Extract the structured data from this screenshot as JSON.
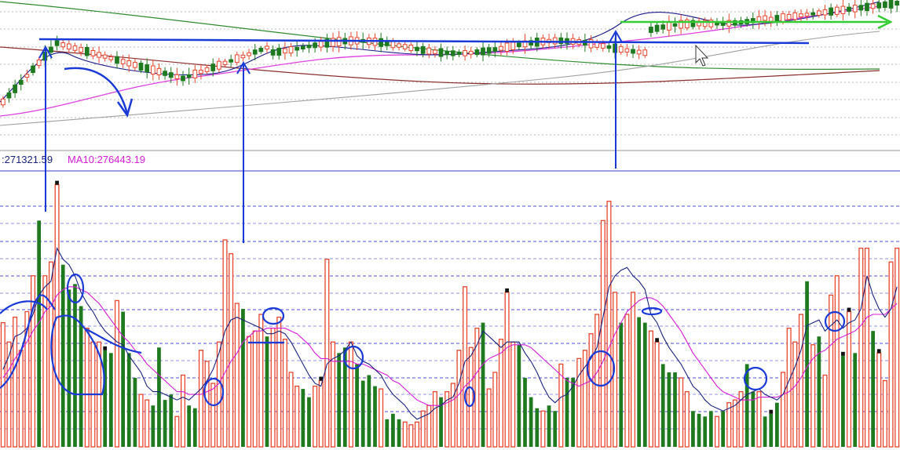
{
  "indicator_readout": {
    "ma5_text": ":271321.59",
    "ma10_text": "MA10:276443.19"
  },
  "colors": {
    "up": "#e8452c",
    "down": "#1f7a1f",
    "ma5_volume": "#1a237e",
    "ma10_volume": "#d81bd8",
    "ma_price_short": "#1a1a8a",
    "ma_price_mid": "#e040e0",
    "ma_price_long": "#a0a0a0",
    "ma_green": "#2e8b2e",
    "ma_brown": "#8b2e2e",
    "annotation_blue": "#1a3ad8",
    "annotation_green": "#33cc33",
    "grid": "#3a3ad0",
    "grid_gray": "#bbbbbb"
  },
  "chart_data": [
    {
      "type": "candlestick",
      "panel": "price",
      "moving_averages": [
        "short",
        "mid",
        "long",
        "green",
        "brown"
      ],
      "annotations": [
        "horizontal resistance line",
        "green breakout arrow",
        "three vertical arrows to volume spikes",
        "hand-drawn curved arrow"
      ]
    },
    {
      "type": "bar",
      "panel": "volume",
      "series": [
        {
          "name": "MA5",
          "kind": "line"
        },
        {
          "name": "MA10",
          "kind": "line"
        }
      ],
      "volume": [
        {
          "v": 0.45,
          "up": true
        },
        {
          "v": 0.38,
          "up": true
        },
        {
          "v": 0.47,
          "up": true
        },
        {
          "v": 0.35,
          "up": true
        },
        {
          "v": 0.49,
          "up": true
        },
        {
          "v": 0.62,
          "up": true
        },
        {
          "v": 0.82,
          "up": false
        },
        {
          "v": 0.62,
          "up": true
        },
        {
          "v": 0.67,
          "up": true
        },
        {
          "v": 0.95,
          "up": true
        },
        {
          "v": 0.66,
          "up": false
        },
        {
          "v": 0.57,
          "up": false
        },
        {
          "v": 0.59,
          "up": false
        },
        {
          "v": 0.51,
          "up": false
        },
        {
          "v": 0.43,
          "up": true
        },
        {
          "v": 0.38,
          "up": true
        },
        {
          "v": 0.38,
          "up": true
        },
        {
          "v": 0.35,
          "up": false
        },
        {
          "v": 0.34,
          "up": false
        },
        {
          "v": 0.53,
          "up": true
        },
        {
          "v": 0.49,
          "up": false
        },
        {
          "v": 0.34,
          "up": false
        },
        {
          "v": 0.25,
          "up": false
        },
        {
          "v": 0.19,
          "up": true
        },
        {
          "v": 0.17,
          "up": true
        },
        {
          "v": 0.15,
          "up": false
        },
        {
          "v": 0.36,
          "up": false
        },
        {
          "v": 0.17,
          "up": false
        },
        {
          "v": 0.19,
          "up": false
        },
        {
          "v": 0.11,
          "up": true
        },
        {
          "v": 0.26,
          "up": true
        },
        {
          "v": 0.15,
          "up": false
        },
        {
          "v": 0.14,
          "up": false
        },
        {
          "v": 0.35,
          "up": true
        },
        {
          "v": 0.31,
          "up": true
        },
        {
          "v": 0.23,
          "up": true
        },
        {
          "v": 0.38,
          "up": true
        },
        {
          "v": 0.75,
          "up": true
        },
        {
          "v": 0.7,
          "up": true
        },
        {
          "v": 0.52,
          "up": true
        },
        {
          "v": 0.5,
          "up": false
        },
        {
          "v": 0.4,
          "up": true
        },
        {
          "v": 0.42,
          "up": true
        },
        {
          "v": 0.48,
          "up": true
        },
        {
          "v": 0.4,
          "up": false
        },
        {
          "v": 0.43,
          "up": true
        },
        {
          "v": 0.47,
          "up": true
        },
        {
          "v": 0.39,
          "up": true
        },
        {
          "v": 0.27,
          "up": true
        },
        {
          "v": 0.22,
          "up": true
        },
        {
          "v": 0.21,
          "up": false
        },
        {
          "v": 0.18,
          "up": false
        },
        {
          "v": 0.22,
          "up": true
        },
        {
          "v": 0.24,
          "up": true
        },
        {
          "v": 0.68,
          "up": true
        },
        {
          "v": 0.38,
          "up": true
        },
        {
          "v": 0.34,
          "up": false
        },
        {
          "v": 0.36,
          "up": false
        },
        {
          "v": 0.38,
          "up": true
        },
        {
          "v": 0.3,
          "up": false
        },
        {
          "v": 0.24,
          "up": false
        },
        {
          "v": 0.26,
          "up": false
        },
        {
          "v": 0.22,
          "up": false
        },
        {
          "v": 0.21,
          "up": true
        },
        {
          "v": 0.1,
          "up": false
        },
        {
          "v": 0.12,
          "up": false
        },
        {
          "v": 0.1,
          "up": false
        },
        {
          "v": 0.09,
          "up": true
        },
        {
          "v": 0.08,
          "up": true
        },
        {
          "v": 0.09,
          "up": true
        },
        {
          "v": 0.13,
          "up": true
        },
        {
          "v": 0.15,
          "up": true
        },
        {
          "v": 0.2,
          "up": true
        },
        {
          "v": 0.18,
          "up": false
        },
        {
          "v": 0.2,
          "up": true
        },
        {
          "v": 0.23,
          "up": true
        },
        {
          "v": 0.35,
          "up": true
        },
        {
          "v": 0.58,
          "up": true
        },
        {
          "v": 0.36,
          "up": true
        },
        {
          "v": 0.43,
          "up": true
        },
        {
          "v": 0.45,
          "up": false
        },
        {
          "v": 0.21,
          "up": true
        },
        {
          "v": 0.27,
          "up": true
        },
        {
          "v": 0.39,
          "up": true
        },
        {
          "v": 0.56,
          "up": true
        },
        {
          "v": 0.38,
          "up": true
        },
        {
          "v": 0.37,
          "up": false
        },
        {
          "v": 0.25,
          "up": false
        },
        {
          "v": 0.18,
          "up": false
        },
        {
          "v": 0.14,
          "up": false
        },
        {
          "v": 0.13,
          "up": true
        },
        {
          "v": 0.15,
          "up": false
        },
        {
          "v": 0.13,
          "up": false
        },
        {
          "v": 0.3,
          "up": true
        },
        {
          "v": 0.25,
          "up": false
        },
        {
          "v": 0.25,
          "up": false
        },
        {
          "v": 0.32,
          "up": true
        },
        {
          "v": 0.35,
          "up": true
        },
        {
          "v": 0.41,
          "up": true
        },
        {
          "v": 0.48,
          "up": true
        },
        {
          "v": 0.82,
          "up": true
        },
        {
          "v": 0.89,
          "up": true
        },
        {
          "v": 0.56,
          "up": true
        },
        {
          "v": 0.45,
          "up": false
        },
        {
          "v": 0.48,
          "up": true
        },
        {
          "v": 0.56,
          "up": true
        },
        {
          "v": 0.47,
          "up": false
        },
        {
          "v": 0.45,
          "up": false
        },
        {
          "v": 0.42,
          "up": true
        },
        {
          "v": 0.38,
          "up": true
        },
        {
          "v": 0.3,
          "up": false
        },
        {
          "v": 0.27,
          "up": false
        },
        {
          "v": 0.27,
          "up": false
        },
        {
          "v": 0.25,
          "up": true
        },
        {
          "v": 0.2,
          "up": true
        },
        {
          "v": 0.13,
          "up": false
        },
        {
          "v": 0.12,
          "up": false
        },
        {
          "v": 0.11,
          "up": false
        },
        {
          "v": 0.13,
          "up": false
        },
        {
          "v": 0.11,
          "up": true
        },
        {
          "v": 0.13,
          "up": false
        },
        {
          "v": 0.16,
          "up": true
        },
        {
          "v": 0.17,
          "up": true
        },
        {
          "v": 0.2,
          "up": true
        },
        {
          "v": 0.3,
          "up": false
        },
        {
          "v": 0.2,
          "up": false
        },
        {
          "v": 0.2,
          "up": true
        },
        {
          "v": 0.11,
          "up": false
        },
        {
          "v": 0.12,
          "up": false
        },
        {
          "v": 0.16,
          "up": false
        },
        {
          "v": 0.27,
          "up": true
        },
        {
          "v": 0.43,
          "up": true
        },
        {
          "v": 0.38,
          "up": true
        },
        {
          "v": 0.48,
          "up": true
        },
        {
          "v": 0.6,
          "up": false
        },
        {
          "v": 0.37,
          "up": true
        },
        {
          "v": 0.4,
          "up": false
        },
        {
          "v": 0.26,
          "up": true
        },
        {
          "v": 0.55,
          "up": true
        },
        {
          "v": 0.62,
          "up": true
        },
        {
          "v": 0.33,
          "up": false
        },
        {
          "v": 0.49,
          "up": true
        },
        {
          "v": 0.34,
          "up": false
        },
        {
          "v": 0.72,
          "up": true
        },
        {
          "v": 0.72,
          "up": true
        },
        {
          "v": 0.42,
          "up": false
        },
        {
          "v": 0.34,
          "up": true
        },
        {
          "v": 0.24,
          "up": true
        },
        {
          "v": 0.67,
          "up": true
        },
        {
          "v": 0.72,
          "up": true
        }
      ],
      "ma5": [
        0.28,
        0.33,
        0.4,
        0.41,
        0.43,
        0.48,
        0.55,
        0.58,
        0.6,
        0.72,
        0.68,
        0.66,
        0.62,
        0.56,
        0.52,
        0.49,
        0.45,
        0.42,
        0.4,
        0.38,
        0.37,
        0.33,
        0.3,
        0.27,
        0.22,
        0.2,
        0.2,
        0.19,
        0.18,
        0.17,
        0.18,
        0.17,
        0.19,
        0.21,
        0.24,
        0.28,
        0.34,
        0.42,
        0.46,
        0.47,
        0.46,
        0.45,
        0.44,
        0.43,
        0.41,
        0.41,
        0.42,
        0.41,
        0.38,
        0.34,
        0.3,
        0.26,
        0.23,
        0.22,
        0.3,
        0.32,
        0.33,
        0.35,
        0.38,
        0.33,
        0.31,
        0.3,
        0.28,
        0.26,
        0.22,
        0.19,
        0.17,
        0.15,
        0.12,
        0.1,
        0.11,
        0.12,
        0.14,
        0.15,
        0.17,
        0.18,
        0.23,
        0.31,
        0.33,
        0.37,
        0.42,
        0.4,
        0.38,
        0.36,
        0.38,
        0.38,
        0.38,
        0.34,
        0.31,
        0.27,
        0.22,
        0.18,
        0.16,
        0.18,
        0.19,
        0.22,
        0.26,
        0.29,
        0.32,
        0.36,
        0.47,
        0.58,
        0.62,
        0.64,
        0.65,
        0.62,
        0.6,
        0.57,
        0.48,
        0.45,
        0.4,
        0.36,
        0.33,
        0.3,
        0.26,
        0.22,
        0.2,
        0.17,
        0.15,
        0.14,
        0.13,
        0.14,
        0.15,
        0.17,
        0.19,
        0.2,
        0.21,
        0.19,
        0.18,
        0.17,
        0.19,
        0.24,
        0.29,
        0.35,
        0.44,
        0.45,
        0.46,
        0.42,
        0.44,
        0.46,
        0.43,
        0.45,
        0.46,
        0.5,
        0.62,
        0.55,
        0.5,
        0.47,
        0.5,
        0.58
      ],
      "ma10": [
        0.25,
        0.28,
        0.32,
        0.35,
        0.38,
        0.42,
        0.45,
        0.49,
        0.51,
        0.55,
        0.57,
        0.58,
        0.58,
        0.57,
        0.56,
        0.54,
        0.52,
        0.49,
        0.46,
        0.43,
        0.4,
        0.38,
        0.35,
        0.33,
        0.3,
        0.28,
        0.26,
        0.24,
        0.22,
        0.2,
        0.2,
        0.19,
        0.19,
        0.19,
        0.2,
        0.21,
        0.23,
        0.27,
        0.31,
        0.34,
        0.38,
        0.4,
        0.42,
        0.42,
        0.43,
        0.43,
        0.43,
        0.43,
        0.42,
        0.41,
        0.39,
        0.37,
        0.34,
        0.32,
        0.32,
        0.31,
        0.31,
        0.31,
        0.31,
        0.3,
        0.3,
        0.29,
        0.28,
        0.27,
        0.26,
        0.24,
        0.23,
        0.21,
        0.19,
        0.17,
        0.16,
        0.15,
        0.15,
        0.15,
        0.16,
        0.17,
        0.19,
        0.22,
        0.24,
        0.27,
        0.3,
        0.32,
        0.33,
        0.34,
        0.36,
        0.37,
        0.37,
        0.37,
        0.36,
        0.34,
        0.32,
        0.3,
        0.28,
        0.26,
        0.24,
        0.23,
        0.22,
        0.23,
        0.24,
        0.27,
        0.31,
        0.36,
        0.41,
        0.45,
        0.49,
        0.51,
        0.53,
        0.54,
        0.54,
        0.53,
        0.51,
        0.48,
        0.45,
        0.42,
        0.38,
        0.34,
        0.31,
        0.28,
        0.25,
        0.22,
        0.2,
        0.19,
        0.18,
        0.17,
        0.17,
        0.17,
        0.18,
        0.18,
        0.18,
        0.18,
        0.19,
        0.2,
        0.22,
        0.25,
        0.29,
        0.32,
        0.34,
        0.35,
        0.37,
        0.39,
        0.4,
        0.41,
        0.42,
        0.44,
        0.47,
        0.48,
        0.48,
        0.48,
        0.5,
        0.52
      ]
    }
  ]
}
